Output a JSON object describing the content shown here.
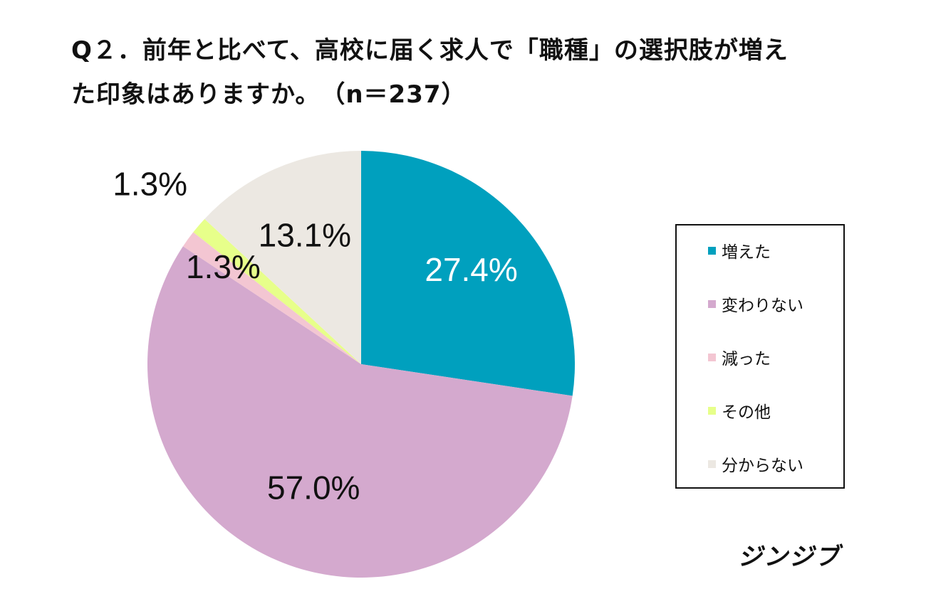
{
  "title": {
    "line1": "Q２．前年と比べて、高校に届く求人で「職種」の選択肢が増え",
    "line2": "た印象はありますか。",
    "n_label": "（n＝237）"
  },
  "brand": "ジンジブ",
  "chart_data": {
    "type": "pie",
    "title": "Q２．前年と比べて、高校に届く求人で「職種」の選択肢が増えた印象はありますか。（n＝237）",
    "categories": [
      "増えた",
      "変わりない",
      "減った",
      "その他",
      "分からない"
    ],
    "values": [
      27.4,
      57.0,
      1.3,
      1.3,
      13.1
    ],
    "value_labels": [
      "27.4%",
      "57.0%",
      "1.3%",
      "1.3%",
      "13.1%"
    ],
    "colors": [
      "#00A0BE",
      "#D4A9CE",
      "#F3C6D2",
      "#E7FF8A",
      "#ECE8E2"
    ],
    "label_colors": [
      "#FFFFFF",
      "#111111",
      "#111111",
      "#111111",
      "#111111"
    ],
    "start_angle_deg": 0,
    "direction": "clockwise",
    "legend_position": "right"
  }
}
